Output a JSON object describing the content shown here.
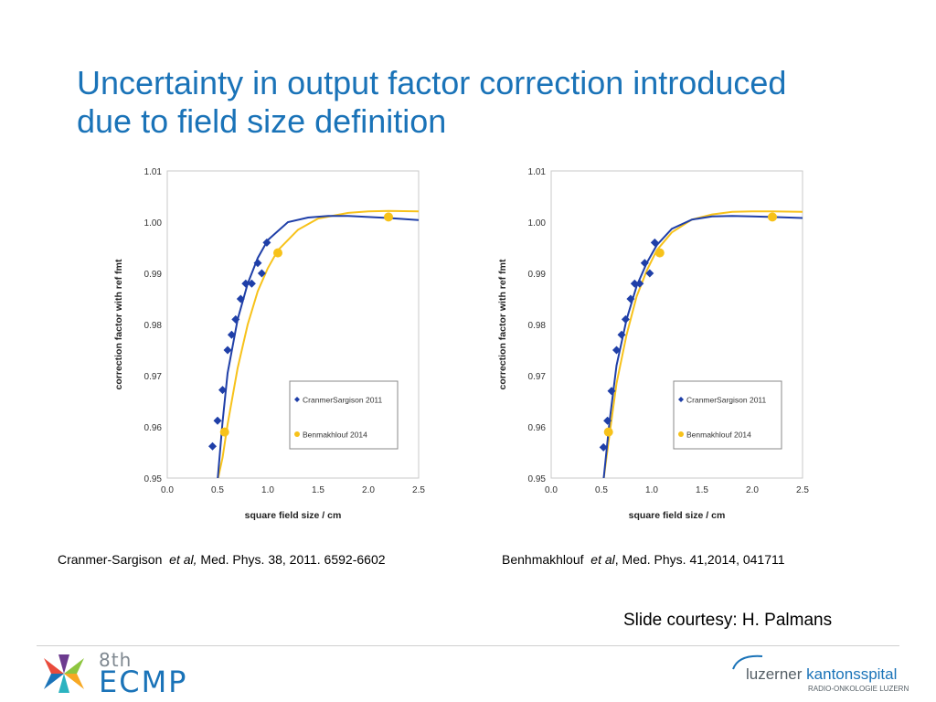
{
  "title": {
    "line1": "Uncertainty in output factor correction introduced",
    "line2": "due to field size definition"
  },
  "chart_data": [
    {
      "type": "scatter",
      "xlabel": "square field size / cm",
      "ylabel": "correction factor with ref fmt",
      "xlim": [
        0.0,
        2.5
      ],
      "ylim": [
        0.95,
        1.01
      ],
      "xticks": [
        "0.0",
        "0.5",
        "1.0",
        "1.5",
        "2.0",
        "2.5"
      ],
      "yticks": [
        "0.95",
        "0.96",
        "0.97",
        "0.98",
        "0.99",
        "1.00",
        "1.01"
      ],
      "grid": false,
      "legend_position": "bottom-right",
      "series": [
        {
          "name": "CranmerSargison 2011",
          "color": "#1f3fa8",
          "marker": "diamond",
          "points": [
            [
              0.45,
              0.9562
            ],
            [
              0.5,
              0.9612
            ],
            [
              0.55,
              0.9672
            ],
            [
              0.6,
              0.975
            ],
            [
              0.64,
              0.978
            ],
            [
              0.68,
              0.981
            ],
            [
              0.73,
              0.985
            ],
            [
              0.78,
              0.988
            ],
            [
              0.84,
              0.988
            ],
            [
              0.9,
              0.992
            ],
            [
              0.94,
              0.99
            ],
            [
              0.99,
              0.996
            ]
          ],
          "fit": [
            [
              0.5,
              0.9495
            ],
            [
              0.55,
              0.961
            ],
            [
              0.6,
              0.9705
            ],
            [
              0.7,
              0.981
            ],
            [
              0.8,
              0.988
            ],
            [
              0.9,
              0.993
            ],
            [
              1.0,
              0.9965
            ],
            [
              1.2,
              1.0
            ],
            [
              1.4,
              1.0009
            ],
            [
              1.6,
              1.0012
            ],
            [
              1.8,
              1.0012
            ],
            [
              2.0,
              1.001
            ],
            [
              2.2,
              1.0008
            ],
            [
              2.5,
              1.0004
            ]
          ]
        },
        {
          "name": "Benmakhlouf 2014",
          "color": "#f7c21a",
          "marker": "circle",
          "points": [
            [
              0.57,
              0.959
            ],
            [
              1.1,
              0.994
            ],
            [
              2.2,
              1.001
            ]
          ],
          "fit": [
            [
              0.5,
              0.9495
            ],
            [
              0.55,
              0.954
            ],
            [
              0.6,
              0.9605
            ],
            [
              0.7,
              0.9715
            ],
            [
              0.8,
              0.98
            ],
            [
              0.9,
              0.9865
            ],
            [
              1.0,
              0.991
            ],
            [
              1.1,
              0.9945
            ],
            [
              1.3,
              0.9985
            ],
            [
              1.5,
              1.0007
            ],
            [
              1.8,
              1.0018
            ],
            [
              2.0,
              1.0021
            ],
            [
              2.2,
              1.0022
            ],
            [
              2.5,
              1.0021
            ]
          ]
        }
      ]
    },
    {
      "type": "scatter",
      "xlabel": "square field size / cm",
      "ylabel": "correction factor with ref fmt",
      "xlim": [
        0.0,
        2.5
      ],
      "ylim": [
        0.95,
        1.01
      ],
      "xticks": [
        "0.0",
        "0.5",
        "1.0",
        "1.5",
        "2.0",
        "2.5"
      ],
      "yticks": [
        "0.95",
        "0.96",
        "0.97",
        "0.98",
        "0.99",
        "1.00",
        "1.01"
      ],
      "grid": false,
      "legend_position": "bottom-right",
      "series": [
        {
          "name": "CranmerSargison 2011",
          "color": "#1f3fa8",
          "marker": "diamond",
          "points": [
            [
              0.52,
              0.956
            ],
            [
              0.56,
              0.9612
            ],
            [
              0.6,
              0.967
            ],
            [
              0.65,
              0.975
            ],
            [
              0.7,
              0.978
            ],
            [
              0.74,
              0.981
            ],
            [
              0.79,
              0.985
            ],
            [
              0.83,
              0.988
            ],
            [
              0.88,
              0.988
            ],
            [
              0.93,
              0.992
            ],
            [
              0.98,
              0.99
            ],
            [
              1.03,
              0.996
            ]
          ],
          "fit": [
            [
              0.52,
              0.9495
            ],
            [
              0.58,
              0.961
            ],
            [
              0.65,
              0.972
            ],
            [
              0.75,
              0.981
            ],
            [
              0.85,
              0.9875
            ],
            [
              0.95,
              0.992
            ],
            [
              1.05,
              0.9955
            ],
            [
              1.2,
              0.9987
            ],
            [
              1.4,
              1.0005
            ],
            [
              1.6,
              1.0011
            ],
            [
              1.8,
              1.0012
            ],
            [
              2.0,
              1.0011
            ],
            [
              2.2,
              1.001
            ],
            [
              2.5,
              1.0008
            ]
          ]
        },
        {
          "name": "Benmakhlouf 2014",
          "color": "#f7c21a",
          "marker": "circle",
          "points": [
            [
              0.57,
              0.959
            ],
            [
              1.08,
              0.994
            ],
            [
              2.2,
              1.001
            ]
          ],
          "fit": [
            [
              0.52,
              0.9495
            ],
            [
              0.57,
              0.957
            ],
            [
              0.65,
              0.9685
            ],
            [
              0.75,
              0.978
            ],
            [
              0.85,
              0.9855
            ],
            [
              0.95,
              0.9905
            ],
            [
              1.05,
              0.9945
            ],
            [
              1.2,
              0.998
            ],
            [
              1.4,
              1.0005
            ],
            [
              1.6,
              1.0015
            ],
            [
              1.8,
              1.002
            ],
            [
              2.0,
              1.0021
            ],
            [
              2.2,
              1.0021
            ],
            [
              2.5,
              1.002
            ]
          ]
        }
      ]
    }
  ],
  "captions": {
    "left": {
      "author": "Cranmer-Sargison",
      "etal": "et al,",
      "ref": "Med. Phys. 38, 2011. 6592-6602"
    },
    "right": {
      "author": "Benhmakhlouf",
      "etal": "et  al",
      "ref": ", Med. Phys. 41,2014,  041711"
    }
  },
  "credit": "Slide courtesy: H. Palmans",
  "footer": {
    "ecmp_small": "8th",
    "ecmp_big": "ECMP",
    "hospital_part1": "luzerner",
    "hospital_part2": "kantonsspital",
    "hospital_sub": "RADIO-ONKOLOGIE LUZERN"
  }
}
